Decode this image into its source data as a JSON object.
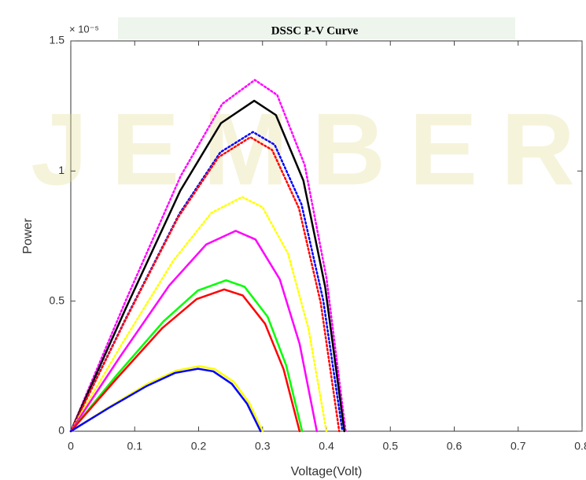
{
  "chart_data": {
    "type": "line",
    "title": "DSSC P-V Curve",
    "x_label": "Voltage(Volt)",
    "y_label": "Power",
    "y_exponent_label": "× 10⁻⁵",
    "watermark": "JEMBER",
    "xlim": [
      0,
      0.8
    ],
    "xticks": [
      0,
      0.1,
      0.2,
      0.3,
      0.4,
      0.5,
      0.6,
      0.7,
      0.8
    ],
    "ylim": [
      0,
      1.5
    ],
    "yticks": [
      0,
      0.5,
      1,
      1.5
    ],
    "grid": false,
    "series": [
      {
        "color": "#ff00ff",
        "dash": "dotted",
        "x": [
          0,
          0.086,
          0.172,
          0.237,
          0.288,
          0.323,
          0.366,
          0.4,
          0.43
        ],
        "values": [
          0,
          0.502,
          0.981,
          1.258,
          1.35,
          1.292,
          1.023,
          0.59,
          0
        ]
      },
      {
        "color": "#000000",
        "dash": "solid",
        "x": [
          0,
          0.086,
          0.171,
          0.235,
          0.287,
          0.321,
          0.364,
          0.398,
          0.428
        ],
        "values": [
          0,
          0.472,
          0.923,
          1.184,
          1.27,
          1.215,
          0.963,
          0.555,
          0
        ]
      },
      {
        "color": "#0000ff",
        "dash": "dotted",
        "x": [
          0,
          0.085,
          0.17,
          0.234,
          0.285,
          0.319,
          0.361,
          0.395,
          0.425
        ],
        "values": [
          0,
          0.428,
          0.836,
          1.072,
          1.15,
          1.101,
          0.872,
          0.503,
          0
        ]
      },
      {
        "color": "#ff0000",
        "dash": "dotted",
        "x": [
          0,
          0.084,
          0.168,
          0.231,
          0.281,
          0.315,
          0.357,
          0.391,
          0.42
        ],
        "values": [
          0,
          0.42,
          0.822,
          1.053,
          1.13,
          1.081,
          0.857,
          0.494,
          0
        ]
      },
      {
        "color": "#ffff00",
        "dash": "dotted",
        "x": [
          0,
          0.08,
          0.16,
          0.22,
          0.268,
          0.3,
          0.34,
          0.372,
          0.4
        ],
        "values": [
          0,
          0.335,
          0.654,
          0.839,
          0.9,
          0.861,
          0.682,
          0.393,
          0
        ]
      },
      {
        "color": "#ff00ff",
        "dash": "solid",
        "x": [
          0,
          0.077,
          0.154,
          0.212,
          0.258,
          0.289,
          0.327,
          0.358,
          0.385
        ],
        "values": [
          0,
          0.286,
          0.56,
          0.718,
          0.77,
          0.737,
          0.584,
          0.336,
          0
        ]
      },
      {
        "color": "#00ff00",
        "dash": "solid",
        "x": [
          0,
          0.072,
          0.145,
          0.199,
          0.243,
          0.272,
          0.308,
          0.337,
          0.362
        ],
        "values": [
          0,
          0.216,
          0.422,
          0.541,
          0.58,
          0.555,
          0.44,
          0.253,
          0
        ]
      },
      {
        "color": "#ff0000",
        "dash": "solid",
        "x": [
          0,
          0.072,
          0.143,
          0.197,
          0.24,
          0.269,
          0.304,
          0.333,
          0.358
        ],
        "values": [
          0,
          0.203,
          0.396,
          0.508,
          0.545,
          0.522,
          0.413,
          0.238,
          0
        ]
      },
      {
        "color": "#ffff00",
        "dash": "solid",
        "x": [
          0,
          0.06,
          0.12,
          0.165,
          0.201,
          0.225,
          0.255,
          0.279,
          0.3
        ],
        "values": [
          0,
          0.093,
          0.182,
          0.233,
          0.25,
          0.239,
          0.19,
          0.109,
          0
        ]
      },
      {
        "color": "#0000ff",
        "dash": "solid",
        "x": [
          0,
          0.059,
          0.119,
          0.163,
          0.199,
          0.223,
          0.252,
          0.276,
          0.297
        ],
        "values": [
          0,
          0.089,
          0.174,
          0.224,
          0.24,
          0.23,
          0.182,
          0.105,
          0
        ]
      }
    ]
  }
}
